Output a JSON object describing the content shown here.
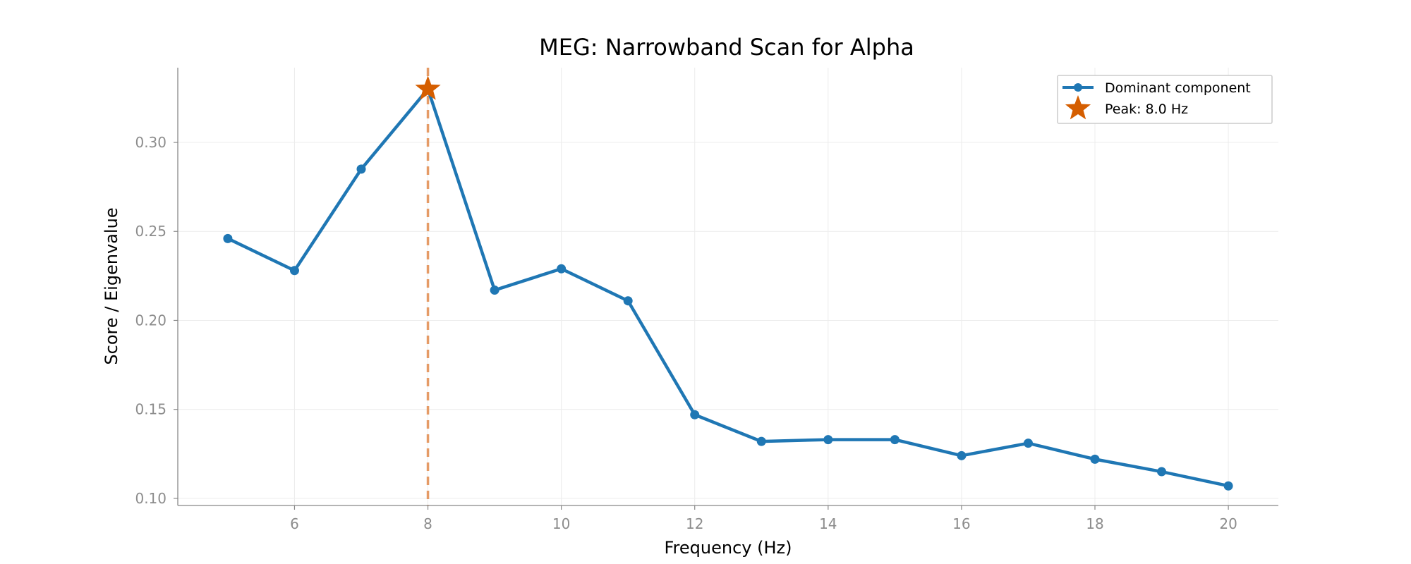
{
  "chart_data": {
    "type": "line",
    "title": "MEG: Narrowband Scan for Alpha",
    "xlabel": "Frequency (Hz)",
    "ylabel": "Score / Eigenvalue",
    "xlim": [
      4.25,
      20.75
    ],
    "ylim": [
      0.096,
      0.342
    ],
    "xticks": [
      6,
      8,
      10,
      12,
      14,
      16,
      18,
      20
    ],
    "yticks": [
      0.1,
      0.15,
      0.2,
      0.25,
      0.3
    ],
    "ytick_labels": [
      "0.10",
      "0.15",
      "0.20",
      "0.25",
      "0.30"
    ],
    "grid": true,
    "legend_position": "top-right",
    "series": [
      {
        "name": "Dominant component",
        "color": "#1f77b4",
        "x": [
          5,
          6,
          7,
          8,
          9,
          10,
          11,
          12,
          13,
          14,
          15,
          16,
          17,
          18,
          19,
          20
        ],
        "y": [
          0.246,
          0.228,
          0.285,
          0.33,
          0.217,
          0.229,
          0.211,
          0.147,
          0.132,
          0.133,
          0.133,
          0.124,
          0.131,
          0.122,
          0.115,
          0.107
        ]
      }
    ],
    "peak": {
      "label": "Peak: 8.0 Hz",
      "x": 8.0,
      "y": 0.33,
      "color": "#d55e00",
      "line_color": "#e59b66"
    }
  }
}
